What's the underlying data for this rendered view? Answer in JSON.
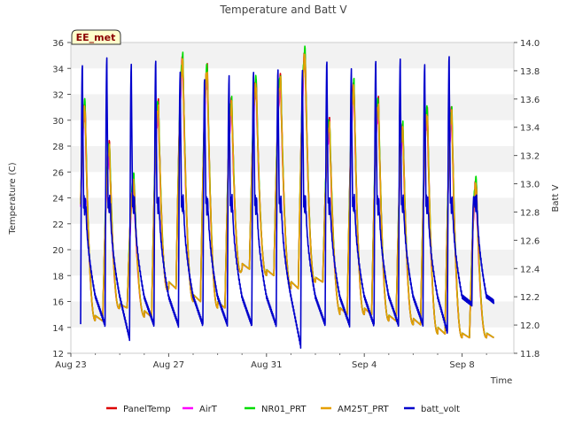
{
  "chart_data": {
    "type": "line",
    "title": "Temperature and Batt V",
    "xlabel": "Time",
    "ylabel": "Temperature (C)",
    "y2label": "Batt V",
    "site_label": "EE_met",
    "x_ticks": [
      "Aug 23",
      "Aug 27",
      "Aug 31",
      "Sep 4",
      "Sep 8"
    ],
    "x_range_days": [
      0,
      17.8
    ],
    "ylim": [
      12,
      36
    ],
    "y_ticks": [
      12,
      14,
      16,
      18,
      20,
      22,
      24,
      26,
      28,
      30,
      32,
      34,
      36
    ],
    "y2lim": [
      11.8,
      14.0
    ],
    "y2_ticks": [
      11.8,
      12.0,
      12.2,
      12.4,
      12.6,
      12.8,
      13.0,
      13.2,
      13.4,
      13.6,
      13.8,
      14.0
    ],
    "grid": "horizontal bands",
    "legend_position": "bottom",
    "temperature_daily": [
      {
        "day": "Aug 23",
        "min": 15.0,
        "max": 31.0
      },
      {
        "day": "Aug 24",
        "min": 14.5,
        "max": 27.8
      },
      {
        "day": "Aug 25",
        "min": 15.5,
        "max": 25.2
      },
      {
        "day": "Aug 26",
        "min": 14.8,
        "max": 31.0
      },
      {
        "day": "Aug 27",
        "min": 17.0,
        "max": 34.5
      },
      {
        "day": "Aug 28",
        "min": 16.0,
        "max": 33.8
      },
      {
        "day": "Aug 29",
        "min": 15.5,
        "max": 31.2
      },
      {
        "day": "Aug 30",
        "min": 18.5,
        "max": 32.8
      },
      {
        "day": "Aug 31",
        "min": 18.0,
        "max": 33.0
      },
      {
        "day": "Sep 1",
        "min": 17.0,
        "max": 35.0
      },
      {
        "day": "Sep 2",
        "min": 17.5,
        "max": 29.6
      },
      {
        "day": "Sep 3",
        "min": 15.0,
        "max": 32.5
      },
      {
        "day": "Sep 4",
        "min": 15.0,
        "max": 31.2
      },
      {
        "day": "Sep 5",
        "min": 14.5,
        "max": 29.2
      },
      {
        "day": "Sep 6",
        "min": 14.2,
        "max": 30.5
      },
      {
        "day": "Sep 7",
        "min": 13.5,
        "max": 30.5
      },
      {
        "day": "Sep 8",
        "min": 13.2,
        "max": 25.0
      }
    ],
    "batt_daily": [
      {
        "day": "Aug 23",
        "min": 12.0,
        "max": 13.85
      },
      {
        "day": "Aug 24",
        "min": 12.0,
        "max": 13.88
      },
      {
        "day": "Aug 25",
        "min": 11.9,
        "max": 13.85
      },
      {
        "day": "Aug 26",
        "min": 12.0,
        "max": 13.87
      },
      {
        "day": "Aug 27",
        "min": 12.0,
        "max": 13.78
      },
      {
        "day": "Aug 28",
        "min": 12.0,
        "max": 13.75
      },
      {
        "day": "Aug 29",
        "min": 12.0,
        "max": 13.75
      },
      {
        "day": "Aug 30",
        "min": 12.0,
        "max": 13.8
      },
      {
        "day": "Aug 31",
        "min": 12.0,
        "max": 13.8
      },
      {
        "day": "Sep 1",
        "min": 11.85,
        "max": 13.8
      },
      {
        "day": "Sep 2",
        "min": 12.0,
        "max": 13.87
      },
      {
        "day": "Sep 3",
        "min": 12.0,
        "max": 13.8
      },
      {
        "day": "Sep 4",
        "min": 12.0,
        "max": 13.88
      },
      {
        "day": "Sep 5",
        "min": 12.0,
        "max": 13.87
      },
      {
        "day": "Sep 6",
        "min": 12.0,
        "max": 13.85
      },
      {
        "day": "Sep 7",
        "min": 11.95,
        "max": 13.9
      },
      {
        "day": "Sep 8",
        "min": 12.15,
        "max": 12.9
      }
    ],
    "series": [
      {
        "name": "PanelTemp",
        "color": "#dd0000",
        "axis": "left",
        "offset": 0.3
      },
      {
        "name": "AirT",
        "color": "#ff00ff",
        "axis": "left",
        "offset": -0.5
      },
      {
        "name": "NR01_PRT",
        "color": "#00dd00",
        "axis": "left",
        "offset": 0.4
      },
      {
        "name": "AM25T_PRT",
        "color": "#e69f00",
        "axis": "left",
        "offset": 0.0
      },
      {
        "name": "batt_volt",
        "color": "#0000cc",
        "axis": "right",
        "offset": 0.0
      }
    ]
  }
}
